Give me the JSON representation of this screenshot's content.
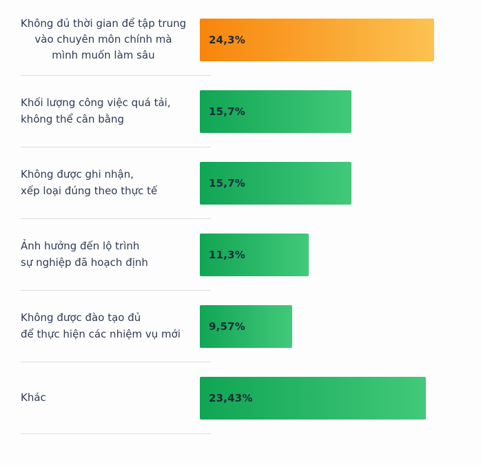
{
  "chart_data": {
    "type": "bar",
    "orientation": "horizontal",
    "unit": "%",
    "grid": false,
    "legend": "none",
    "xlim": [
      0,
      25
    ],
    "categories": [
      "Không đủ thời gian để tập trung vào chuyên môn chính mà mình muốn làm sâu",
      "Khối lượng công việc quá tải, không thể cân bằng",
      "Không được ghi nhận, xếp loại đúng theo thực tế",
      "Ảnh hưởng đến lộ trình sự nghiệp đã hoạch định",
      "Không được đào tạo đủ để thực hiện các nhiệm vụ mới",
      "Khác"
    ],
    "values": [
      24.3,
      15.7,
      15.7,
      11.3,
      9.57,
      23.43
    ],
    "value_labels": [
      "24,3%",
      "15,7%",
      "15,7%",
      "11,3%",
      "9,57%",
      "23,43%"
    ]
  },
  "palette": {
    "highlight_bar_start": "#F8850C",
    "highlight_bar_end": "#FCC251",
    "bar_start": "#10A554",
    "bar_end": "#42C97A",
    "label_text": "#2E3A52",
    "value_text": "#1C2A3A",
    "divider": "#DCDCDC",
    "background": "#FDFDFD"
  },
  "rows": [
    {
      "label_lines": [
        "Không đủ thời gian để tập trung",
        "vào chuyên môn chính mà",
        "mình muốn làm sâu"
      ],
      "value": 24.3,
      "value_label": "24,3%",
      "color": "highlight"
    },
    {
      "label_lines": [
        "Khối lượng công việc quá tải,",
        "không thể cân bằng"
      ],
      "value": 15.7,
      "value_label": "15,7%",
      "color": "green"
    },
    {
      "label_lines": [
        "Không được ghi nhận,",
        "xếp loại đúng theo thực tế"
      ],
      "value": 15.7,
      "value_label": "15,7%",
      "color": "green"
    },
    {
      "label_lines": [
        "Ảnh hưởng đến lộ trình",
        "sự nghiệp đã hoạch định"
      ],
      "value": 11.3,
      "value_label": "11,3%",
      "color": "green"
    },
    {
      "label_lines": [
        "Không được đào tạo đủ",
        "để thực hiện các nhiệm vụ mới"
      ],
      "value": 9.57,
      "value_label": "9,57%",
      "color": "green"
    },
    {
      "label_lines": [
        "Khác"
      ],
      "value": 23.43,
      "value_label": "23,43%",
      "color": "green"
    }
  ]
}
